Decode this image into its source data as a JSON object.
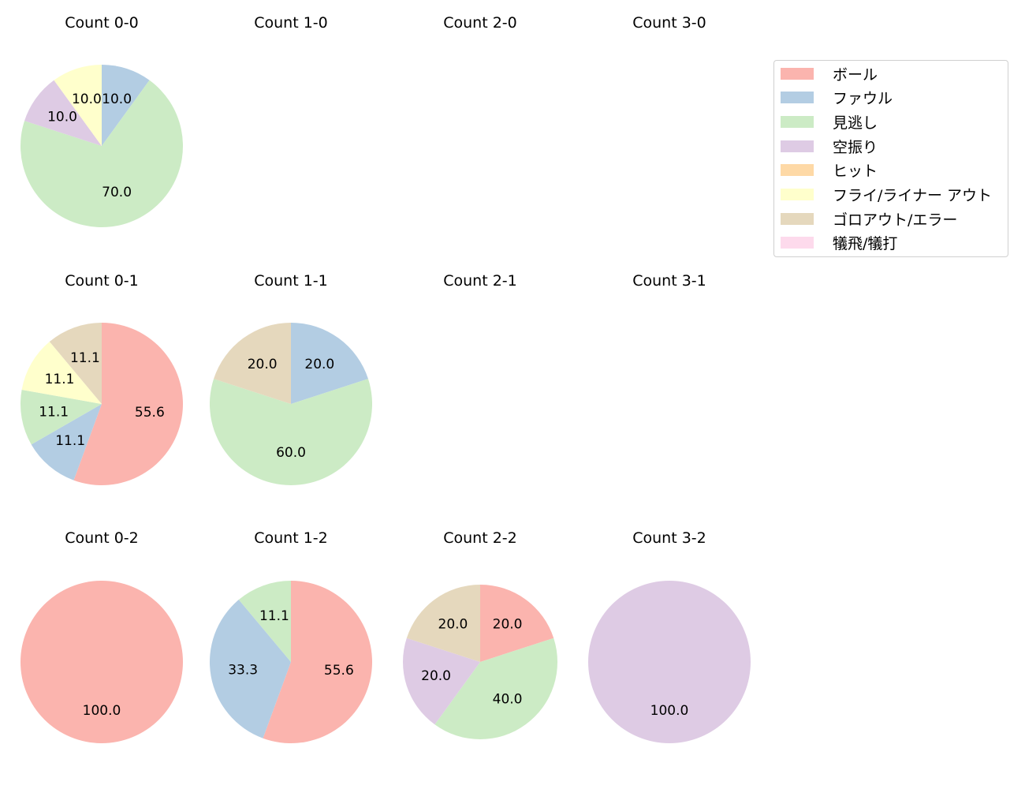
{
  "legend": {
    "items": [
      {
        "label": "ボール",
        "color": "#fbb4ae"
      },
      {
        "label": "ファウル",
        "color": "#b3cde3"
      },
      {
        "label": "見逃し",
        "color": "#ccebc5"
      },
      {
        "label": "空振り",
        "color": "#decbe4"
      },
      {
        "label": "ヒット",
        "color": "#fed9a6"
      },
      {
        "label": "フライ/ライナー アウト",
        "color": "#ffffcc"
      },
      {
        "label": "ゴロアウト/エラー",
        "color": "#e5d8bd"
      },
      {
        "label": "犠飛/犠打",
        "color": "#fddaec"
      }
    ]
  },
  "titles": [
    "Count 0-0",
    "Count 1-0",
    "Count 2-0",
    "Count 3-0",
    "Count 0-1",
    "Count 1-1",
    "Count 2-1",
    "Count 3-1",
    "Count 0-2",
    "Count 1-2",
    "Count 2-2",
    "Count 3-2"
  ],
  "chart_data": [
    {
      "type": "pie",
      "title": "Count 0-0",
      "labels": [
        "ファウル",
        "見逃し",
        "空振り",
        "フライ/ライナー アウト"
      ],
      "values": [
        10.0,
        70.0,
        10.0,
        10.0
      ]
    },
    {
      "type": "pie",
      "title": "Count 1-0",
      "labels": [],
      "values": []
    },
    {
      "type": "pie",
      "title": "Count 2-0",
      "labels": [],
      "values": []
    },
    {
      "type": "pie",
      "title": "Count 3-0",
      "labels": [],
      "values": []
    },
    {
      "type": "pie",
      "title": "Count 0-1",
      "labels": [
        "ボール",
        "ファウル",
        "見逃し",
        "フライ/ライナー アウト",
        "ゴロアウト/エラー"
      ],
      "values": [
        55.6,
        11.1,
        11.1,
        11.1,
        11.1
      ]
    },
    {
      "type": "pie",
      "title": "Count 1-1",
      "labels": [
        "ファウル",
        "見逃し",
        "ゴロアウト/エラー"
      ],
      "values": [
        20.0,
        60.0,
        20.0
      ]
    },
    {
      "type": "pie",
      "title": "Count 2-1",
      "labels": [],
      "values": []
    },
    {
      "type": "pie",
      "title": "Count 3-1",
      "labels": [],
      "values": []
    },
    {
      "type": "pie",
      "title": "Count 0-2",
      "labels": [
        "ボール"
      ],
      "values": [
        100.0
      ]
    },
    {
      "type": "pie",
      "title": "Count 1-2",
      "labels": [
        "ボール",
        "ファウル",
        "見逃し"
      ],
      "values": [
        55.6,
        33.3,
        11.1
      ]
    },
    {
      "type": "pie",
      "title": "Count 2-2",
      "labels": [
        "ボール",
        "見逃し",
        "空振り",
        "ゴロアウト/エラー"
      ],
      "values": [
        20.0,
        40.0,
        20.0,
        20.0
      ]
    },
    {
      "type": "pie",
      "title": "Count 3-2",
      "labels": [
        "空振り"
      ],
      "values": [
        100.0
      ]
    }
  ]
}
